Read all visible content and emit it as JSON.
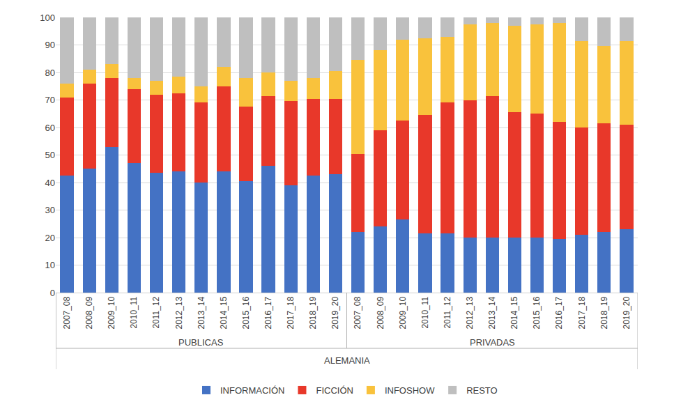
{
  "chart_data": {
    "type": "bar",
    "stacked": true,
    "grid": true,
    "legend": "bottom",
    "xlabel": "ALEMANIA",
    "categories": [
      "2007_08",
      "2008_09",
      "2009_10",
      "2010_11",
      "2011_12",
      "2012_13",
      "2013_14",
      "2014_15",
      "2015_16",
      "2016_17",
      "2017_18",
      "2018_19",
      "2019_20",
      "2007_08",
      "2008_09",
      "2009_10",
      "2010_11",
      "2011_12",
      "2012_13",
      "2013_14",
      "2014_15",
      "2015_16",
      "2016_17",
      "2017_18",
      "2018_19",
      "2019_20"
    ],
    "category_groups": [
      "PUBLICAS",
      "PUBLICAS",
      "PUBLICAS",
      "PUBLICAS",
      "PUBLICAS",
      "PUBLICAS",
      "PUBLICAS",
      "PUBLICAS",
      "PUBLICAS",
      "PUBLICAS",
      "PUBLICAS",
      "PUBLICAS",
      "PUBLICAS",
      "PRIVADAS",
      "PRIVADAS",
      "PRIVADAS",
      "PRIVADAS",
      "PRIVADAS",
      "PRIVADAS",
      "PRIVADAS",
      "PRIVADAS",
      "PRIVADAS",
      "PRIVADAS",
      "PRIVADAS",
      "PRIVADAS",
      "PRIVADAS"
    ],
    "ylim": [
      0,
      100
    ],
    "yticks": [
      0,
      10,
      20,
      30,
      40,
      50,
      60,
      70,
      80,
      90,
      100
    ],
    "series": [
      {
        "name": "INFORMACIÓN",
        "color": "#4472C4",
        "values": [
          42.5,
          45,
          53,
          47,
          43.5,
          44,
          40,
          44,
          40.5,
          46,
          39,
          42.5,
          43,
          22,
          24,
          26.5,
          21.5,
          21.5,
          20,
          20,
          20,
          20,
          19.5,
          21,
          22,
          23
        ]
      },
      {
        "name": "FICCIÓN",
        "color": "#E8382A",
        "values": [
          28.5,
          31,
          25,
          27,
          28.5,
          28.5,
          29,
          31,
          27,
          25.5,
          30.5,
          28,
          27.5,
          28.5,
          35,
          36,
          43,
          47.5,
          50,
          51.5,
          45.5,
          45,
          42.5,
          39,
          39.5,
          38
        ]
      },
      {
        "name": "INFOSHOW",
        "color": "#F9C23C",
        "values": [
          5,
          5,
          5,
          4,
          5,
          6,
          6,
          7,
          10.5,
          8.5,
          7.5,
          7.5,
          10,
          34,
          29,
          29.5,
          28,
          24,
          27.5,
          26.5,
          31.5,
          32.5,
          36,
          31.5,
          28,
          30.5
        ]
      },
      {
        "name": "RESTO",
        "color": "#BFBFBF",
        "values": [
          24,
          19,
          17,
          22,
          23,
          21.5,
          25,
          18,
          22,
          20,
          23,
          22,
          19.5,
          15.5,
          12,
          8,
          7.5,
          7,
          2.5,
          2,
          3,
          2.5,
          2,
          8.5,
          10.5,
          8.5
        ]
      }
    ]
  }
}
